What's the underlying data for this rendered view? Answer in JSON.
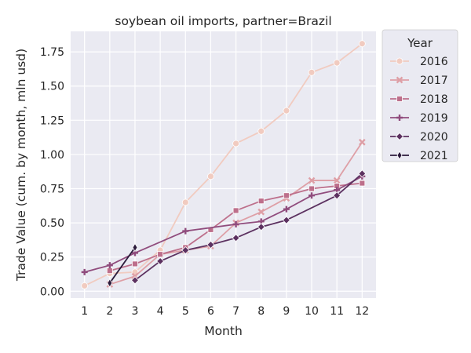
{
  "chart_data": {
    "type": "line",
    "title": "soybean oil imports, partner=Brazil",
    "xlabel": "Month",
    "ylabel": "Trade Value (cum. by month, mln usd)",
    "x": [
      1,
      2,
      3,
      4,
      5,
      6,
      7,
      8,
      9,
      10,
      11,
      12
    ],
    "xlim": [
      0.45,
      12.55
    ],
    "ylim": [
      -0.05,
      1.9
    ],
    "yticks": [
      0.0,
      0.25,
      0.5,
      0.75,
      1.0,
      1.25,
      1.5,
      1.75
    ],
    "ytick_labels": [
      "0.00",
      "0.25",
      "0.50",
      "0.75",
      "1.00",
      "1.25",
      "1.50",
      "1.75"
    ],
    "xtick_labels": [
      "1",
      "2",
      "3",
      "4",
      "5",
      "6",
      "7",
      "8",
      "9",
      "10",
      "11",
      "12"
    ],
    "grid": true,
    "legend": {
      "title": "Year",
      "placement": "outside right, top"
    },
    "series": [
      {
        "name": "2016",
        "color": "#f1cbc0",
        "marker": "circle",
        "points": [
          [
            1,
            0.04
          ],
          [
            2,
            0.13
          ],
          [
            3,
            0.14
          ],
          [
            4,
            0.3
          ],
          [
            5,
            0.65
          ],
          [
            6,
            0.84
          ],
          [
            7,
            1.08
          ],
          [
            8,
            1.17
          ],
          [
            9,
            1.32
          ],
          [
            10,
            1.6
          ],
          [
            11,
            1.67
          ],
          [
            12,
            1.81
          ]
        ]
      },
      {
        "name": "2017",
        "color": "#de9fa6",
        "marker": "x",
        "points": [
          [
            2,
            0.05
          ],
          [
            3,
            0.11
          ],
          [
            4,
            0.27
          ],
          [
            5,
            0.3
          ],
          [
            6,
            0.33
          ],
          [
            7,
            0.5
          ],
          [
            8,
            0.58
          ],
          [
            9,
            0.68
          ],
          [
            10,
            0.81
          ],
          [
            11,
            0.81
          ],
          [
            12,
            1.09
          ]
        ]
      },
      {
        "name": "2018",
        "color": "#bd6f8b",
        "marker": "square",
        "points": [
          [
            2,
            0.15
          ],
          [
            3,
            0.2
          ],
          [
            4,
            0.27
          ],
          [
            5,
            0.32
          ],
          [
            6,
            0.45
          ],
          [
            7,
            0.59
          ],
          [
            8,
            0.66
          ],
          [
            9,
            0.7
          ],
          [
            10,
            0.75
          ],
          [
            11,
            0.77
          ],
          [
            12,
            0.79
          ]
        ]
      },
      {
        "name": "2019",
        "color": "#904c7d",
        "marker": "plus",
        "points": [
          [
            1,
            0.14
          ],
          [
            2,
            0.19
          ],
          [
            3,
            0.28
          ],
          [
            5,
            0.44
          ],
          [
            7,
            0.49
          ],
          [
            8,
            0.51
          ],
          [
            9,
            0.6
          ],
          [
            10,
            0.7
          ],
          [
            11,
            0.74
          ],
          [
            12,
            0.84
          ]
        ]
      },
      {
        "name": "2020",
        "color": "#5c3160",
        "marker": "diamond",
        "points": [
          [
            3,
            0.08
          ],
          [
            4,
            0.22
          ],
          [
            5,
            0.3
          ],
          [
            6,
            0.34
          ],
          [
            7,
            0.39
          ],
          [
            8,
            0.47
          ],
          [
            9,
            0.52
          ],
          [
            11,
            0.7
          ],
          [
            12,
            0.86
          ]
        ]
      },
      {
        "name": "2021",
        "color": "#2b1a3b",
        "marker": "thin_diamond",
        "points": [
          [
            2,
            0.06
          ],
          [
            3,
            0.32
          ]
        ]
      }
    ]
  }
}
